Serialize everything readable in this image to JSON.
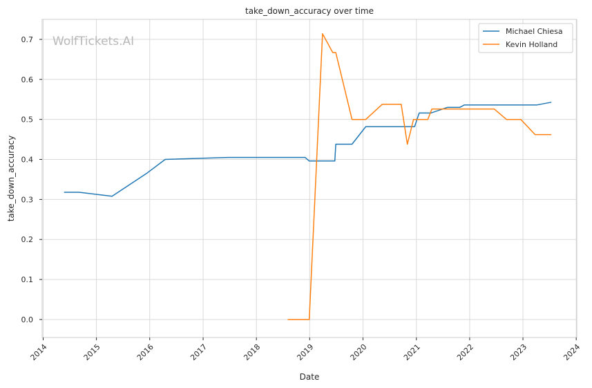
{
  "chart_data": {
    "type": "line",
    "title": "take_down_accuracy over time",
    "xlabel": "Date",
    "ylabel": "take_down_accuracy",
    "watermark": "WolfTickets.AI",
    "xlim": [
      "2013-12-25",
      "2024-01-05"
    ],
    "ylim": [
      -0.045,
      0.75
    ],
    "x_ticks": [
      "2014",
      "2015",
      "2016",
      "2017",
      "2018",
      "2019",
      "2020",
      "2021",
      "2022",
      "2023",
      "2024"
    ],
    "y_ticks": [
      "0.0",
      "0.1",
      "0.2",
      "0.3",
      "0.4",
      "0.5",
      "0.6",
      "0.7"
    ],
    "grid": true,
    "legend_position": "top-right",
    "colors": {
      "series": [
        "#1f77b4",
        "#ff7f0e"
      ],
      "grid": "#d9d9d9",
      "axes": "#cccccc"
    },
    "series": [
      {
        "name": "Michael Chiesa",
        "points": [
          [
            "2014-05-24",
            0.318
          ],
          [
            "2014-09-05",
            0.318
          ],
          [
            "2015-04-18",
            0.308
          ],
          [
            "2015-12-10",
            0.365
          ],
          [
            "2016-04-16",
            0.4
          ],
          [
            "2017-06-25",
            0.405
          ],
          [
            "2018-11-30",
            0.405
          ],
          [
            "2018-12-29",
            0.396
          ],
          [
            "2019-06-22",
            0.396
          ],
          [
            "2019-06-29",
            0.438
          ],
          [
            "2019-10-18",
            0.438
          ],
          [
            "2020-01-20",
            0.482
          ],
          [
            "2020-12-20",
            0.482
          ],
          [
            "2021-01-20",
            0.516
          ],
          [
            "2021-04-10",
            0.516
          ],
          [
            "2021-08-01",
            0.53
          ],
          [
            "2021-10-25",
            0.53
          ],
          [
            "2021-11-25",
            0.536
          ],
          [
            "2023-04-05",
            0.536
          ],
          [
            "2023-07-15",
            0.543
          ]
        ]
      },
      {
        "name": "Kevin Holland",
        "points": [
          [
            "2018-08-04",
            0.0
          ],
          [
            "2018-12-29",
            0.0
          ],
          [
            "2019-03-30",
            0.714
          ],
          [
            "2019-06-08",
            0.667
          ],
          [
            "2019-06-29",
            0.667
          ],
          [
            "2019-10-18",
            0.5
          ],
          [
            "2020-01-20",
            0.5
          ],
          [
            "2020-05-13",
            0.538
          ],
          [
            "2020-09-19",
            0.538
          ],
          [
            "2020-10-31",
            0.438
          ],
          [
            "2020-12-12",
            0.5
          ],
          [
            "2021-03-20",
            0.5
          ],
          [
            "2021-04-17",
            0.526
          ],
          [
            "2022-06-18",
            0.526
          ],
          [
            "2022-09-10",
            0.5
          ],
          [
            "2022-12-17",
            0.5
          ],
          [
            "2023-03-25",
            0.462
          ],
          [
            "2023-07-15",
            0.462
          ]
        ]
      }
    ]
  }
}
